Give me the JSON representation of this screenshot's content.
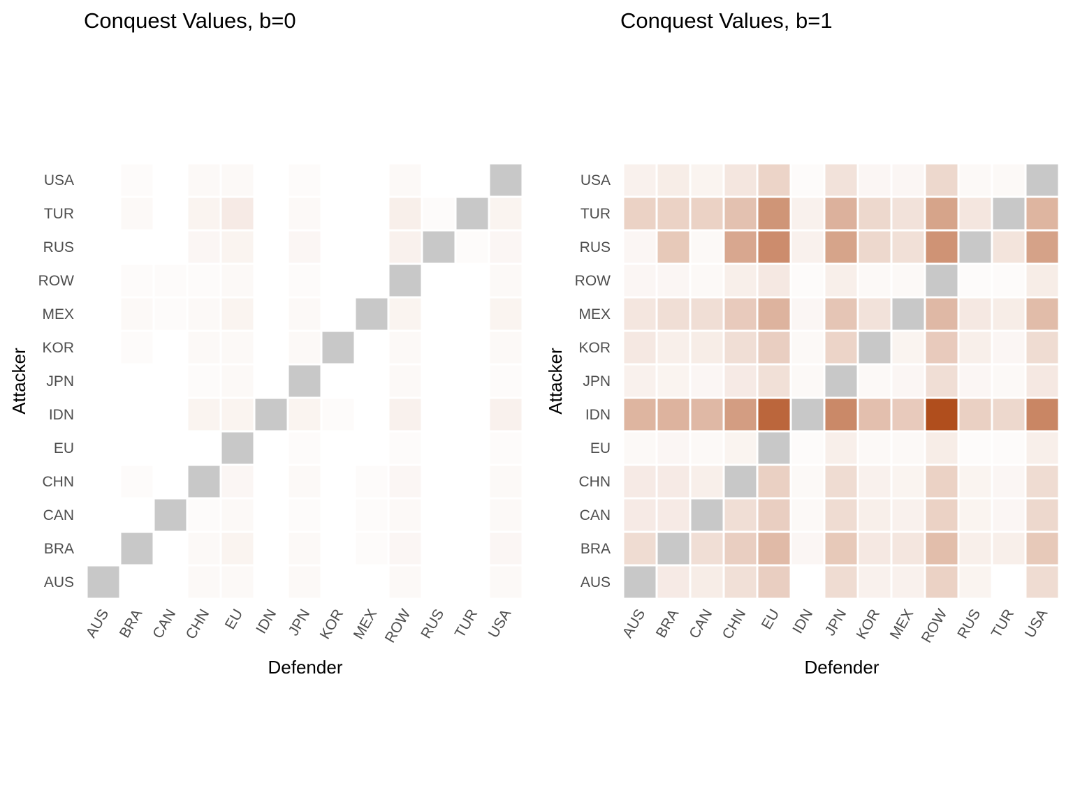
{
  "chart_data": [
    {
      "type": "heatmap",
      "title": "Conquest Values, b=0",
      "xlabel": "Defender",
      "ylabel": "Attacker",
      "legend": "none",
      "grid": false,
      "x_categories": [
        "AUS",
        "BRA",
        "CAN",
        "CHN",
        "EU",
        "IDN",
        "JPN",
        "KOR",
        "MEX",
        "ROW",
        "RUS",
        "TUR",
        "USA"
      ],
      "y_categories": [
        "AUS",
        "BRA",
        "CAN",
        "CHN",
        "EU",
        "IDN",
        "JPN",
        "KOR",
        "MEX",
        "ROW",
        "RUS",
        "TUR",
        "USA"
      ],
      "value_range": [
        0,
        1
      ],
      "diagonal_color": "#c8c8c8",
      "low_color": "#ffffff",
      "high_color": "#b04e1d",
      "values": [
        [
          null,
          0.0,
          0.0,
          0.02,
          0.02,
          0.0,
          0.02,
          0.0,
          0.0,
          0.02,
          0.0,
          0.0,
          0.02
        ],
        [
          0.0,
          null,
          0.0,
          0.02,
          0.04,
          0.0,
          0.02,
          0.0,
          0.01,
          0.03,
          0.0,
          0.0,
          0.03
        ],
        [
          0.0,
          0.0,
          null,
          0.01,
          0.02,
          0.0,
          0.01,
          0.0,
          0.01,
          0.02,
          0.0,
          0.0,
          0.02
        ],
        [
          0.0,
          0.01,
          0.0,
          null,
          0.03,
          0.0,
          0.02,
          0.0,
          0.01,
          0.03,
          0.0,
          0.0,
          0.02
        ],
        [
          0.0,
          0.0,
          0.0,
          0.0,
          null,
          0.0,
          0.01,
          0.0,
          0.0,
          0.01,
          0.0,
          0.0,
          0.01
        ],
        [
          0.0,
          0.0,
          0.0,
          0.04,
          0.04,
          null,
          0.04,
          0.01,
          0.0,
          0.05,
          0.0,
          0.0,
          0.05
        ],
        [
          0.0,
          0.0,
          0.0,
          0.01,
          0.02,
          0.0,
          null,
          0.0,
          0.0,
          0.02,
          0.0,
          0.0,
          0.01
        ],
        [
          0.0,
          0.01,
          0.0,
          0.02,
          0.02,
          0.0,
          0.02,
          null,
          0.0,
          0.02,
          0.0,
          0.0,
          0.02
        ],
        [
          0.0,
          0.02,
          0.01,
          0.02,
          0.04,
          0.0,
          0.02,
          0.0,
          null,
          0.04,
          0.0,
          0.0,
          0.04
        ],
        [
          0.0,
          0.01,
          0.01,
          0.01,
          0.02,
          0.0,
          0.01,
          0.0,
          0.0,
          null,
          0.0,
          0.0,
          0.02
        ],
        [
          0.0,
          0.0,
          0.0,
          0.03,
          0.04,
          0.0,
          0.03,
          0.0,
          0.0,
          0.05,
          null,
          0.01,
          0.03
        ],
        [
          0.0,
          0.02,
          0.0,
          0.04,
          0.08,
          0.0,
          0.02,
          0.0,
          0.0,
          0.06,
          0.01,
          null,
          0.04
        ],
        [
          0.0,
          0.01,
          0.0,
          0.02,
          0.02,
          0.0,
          0.01,
          0.0,
          0.0,
          0.02,
          0.0,
          0.0,
          null
        ]
      ]
    },
    {
      "type": "heatmap",
      "title": "Conquest Values, b=1",
      "xlabel": "Defender",
      "ylabel": "Attacker",
      "legend": "none",
      "grid": false,
      "x_categories": [
        "AUS",
        "BRA",
        "CAN",
        "CHN",
        "EU",
        "IDN",
        "JPN",
        "KOR",
        "MEX",
        "ROW",
        "RUS",
        "TUR",
        "USA"
      ],
      "y_categories": [
        "AUS",
        "BRA",
        "CAN",
        "CHN",
        "EU",
        "IDN",
        "JPN",
        "KOR",
        "MEX",
        "ROW",
        "RUS",
        "TUR",
        "USA"
      ],
      "value_range": [
        0,
        1
      ],
      "diagonal_color": "#c8c8c8",
      "low_color": "#ffffff",
      "high_color": "#b04e1d",
      "values": [
        [
          null,
          0.08,
          0.07,
          0.13,
          0.22,
          0.0,
          0.15,
          0.05,
          0.05,
          0.2,
          0.04,
          0.0,
          0.15
        ],
        [
          0.15,
          null,
          0.14,
          0.22,
          0.33,
          0.03,
          0.25,
          0.09,
          0.1,
          0.31,
          0.06,
          0.06,
          0.25
        ],
        [
          0.08,
          0.08,
          null,
          0.14,
          0.22,
          0.02,
          0.15,
          0.06,
          0.05,
          0.2,
          0.04,
          0.03,
          0.17
        ],
        [
          0.08,
          0.08,
          0.06,
          null,
          0.21,
          0.02,
          0.15,
          0.05,
          0.04,
          0.2,
          0.04,
          0.03,
          0.15
        ],
        [
          0.02,
          0.03,
          0.02,
          0.04,
          null,
          0.01,
          0.06,
          0.02,
          0.02,
          0.07,
          0.01,
          0.01,
          0.06
        ],
        [
          0.36,
          0.37,
          0.34,
          0.5,
          0.84,
          null,
          0.62,
          0.3,
          0.24,
          1.0,
          0.21,
          0.17,
          0.64
        ],
        [
          0.05,
          0.04,
          0.03,
          0.08,
          0.13,
          0.02,
          null,
          0.02,
          0.03,
          0.14,
          0.03,
          0.02,
          0.09
        ],
        [
          0.09,
          0.06,
          0.07,
          0.14,
          0.22,
          0.02,
          0.19,
          null,
          0.04,
          0.24,
          0.06,
          0.03,
          0.15
        ],
        [
          0.1,
          0.14,
          0.14,
          0.24,
          0.37,
          0.03,
          0.27,
          0.12,
          null,
          0.34,
          0.09,
          0.07,
          0.32
        ],
        [
          0.03,
          0.03,
          0.02,
          0.06,
          0.09,
          0.01,
          0.06,
          0.02,
          0.02,
          null,
          0.01,
          0.01,
          0.07
        ],
        [
          0.03,
          0.25,
          0.02,
          0.44,
          0.6,
          0.05,
          0.46,
          0.17,
          0.13,
          0.56,
          null,
          0.11,
          0.47
        ],
        [
          0.2,
          0.2,
          0.2,
          0.29,
          0.55,
          0.05,
          0.38,
          0.17,
          0.12,
          0.46,
          0.1,
          null,
          0.36
        ],
        [
          0.05,
          0.07,
          0.04,
          0.1,
          0.19,
          0.01,
          0.12,
          0.03,
          0.03,
          0.17,
          0.02,
          0.02,
          null
        ]
      ]
    }
  ]
}
